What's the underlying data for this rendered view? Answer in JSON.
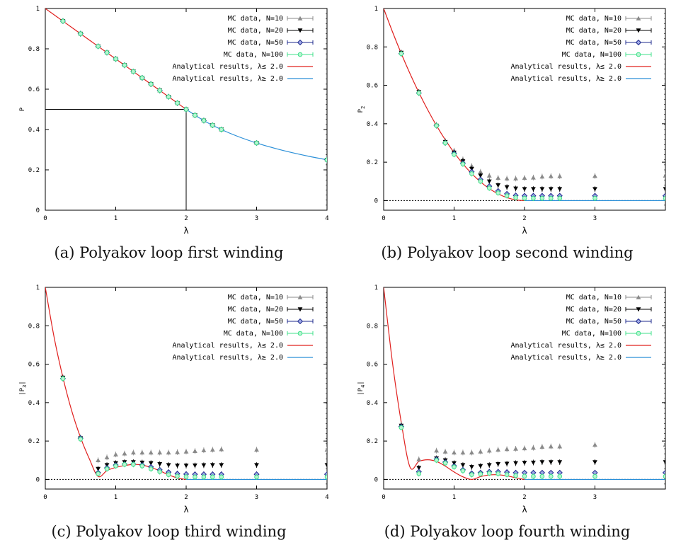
{
  "legend": [
    {
      "label": "MC data, N=10",
      "color": "#8a8a8a",
      "marker": "triangle-up"
    },
    {
      "label": "MC data, N=20",
      "color": "#000000",
      "marker": "triangle-down"
    },
    {
      "label": "MC data, N=50",
      "color": "#1e2a8c",
      "marker": "diamond"
    },
    {
      "label": "MC data, N=100",
      "color": "#3fe08a",
      "marker": "circle"
    },
    {
      "label": "Analytical results, λ≤ 2.0",
      "color": "#e0201e",
      "marker": "line"
    },
    {
      "label": "Analytical results, λ≥ 2.0",
      "color": "#2a8fd8",
      "marker": "line"
    }
  ],
  "chart_data": [
    {
      "type": "scatter",
      "panel_label": "(a)",
      "caption": "Polyakov loop first winding",
      "xlabel": "λ",
      "ylabel": "P",
      "ylabel_sub": "",
      "ylabel_bars": false,
      "xlim": [
        0,
        4
      ],
      "ylim": [
        0,
        1
      ],
      "xticks": [
        0,
        1,
        2,
        3,
        4
      ],
      "yticks": [
        0,
        0.2,
        0.4,
        0.6,
        0.8,
        1
      ],
      "ytick_labels": [
        "0",
        "0.2",
        "0.4",
        "0.6",
        "0.8",
        "1"
      ],
      "zero_line": false,
      "guide_lines": [
        {
          "x": 2,
          "y": 0.5
        }
      ],
      "series": [
        {
          "x": [
            0.25,
            0.5,
            0.75,
            0.875,
            1.0,
            1.125,
            1.25,
            1.375,
            1.5,
            1.625,
            1.75,
            1.875,
            2.0,
            2.125,
            2.25,
            2.375,
            2.5,
            3.0,
            4.0
          ],
          "values": [
            0.9375,
            0.875,
            0.8125,
            0.78125,
            0.75,
            0.71875,
            0.6875,
            0.65625,
            0.625,
            0.59375,
            0.5625,
            0.53125,
            0.5,
            0.4706,
            0.4444,
            0.4211,
            0.4,
            0.3333,
            0.25
          ]
        },
        {
          "x": [
            0.25,
            0.5,
            0.75,
            0.875,
            1.0,
            1.125,
            1.25,
            1.375,
            1.5,
            1.625,
            1.75,
            1.875,
            2.0,
            2.125,
            2.25,
            2.375,
            2.5,
            3.0,
            4.0
          ],
          "values": [
            0.9375,
            0.875,
            0.8125,
            0.78125,
            0.75,
            0.71875,
            0.6875,
            0.65625,
            0.625,
            0.59375,
            0.5625,
            0.53125,
            0.5,
            0.4706,
            0.4444,
            0.4211,
            0.4,
            0.3333,
            0.25
          ]
        },
        {
          "x": [
            0.25,
            0.5,
            0.75,
            0.875,
            1.0,
            1.125,
            1.25,
            1.375,
            1.5,
            1.625,
            1.75,
            1.875,
            2.0,
            2.125,
            2.25,
            2.375,
            2.5,
            3.0,
            4.0
          ],
          "values": [
            0.9375,
            0.875,
            0.8125,
            0.78125,
            0.75,
            0.71875,
            0.6875,
            0.65625,
            0.625,
            0.59375,
            0.5625,
            0.53125,
            0.5,
            0.4706,
            0.4444,
            0.4211,
            0.4,
            0.3333,
            0.25
          ]
        },
        {
          "x": [
            0.25,
            0.5,
            0.75,
            0.875,
            1.0,
            1.125,
            1.25,
            1.375,
            1.5,
            1.625,
            1.75,
            1.875,
            2.0,
            2.125,
            2.25,
            2.375,
            2.5,
            3.0,
            4.0
          ],
          "values": [
            0.9375,
            0.875,
            0.8125,
            0.78125,
            0.75,
            0.71875,
            0.6875,
            0.65625,
            0.625,
            0.59375,
            0.5625,
            0.53125,
            0.5,
            0.4706,
            0.4444,
            0.4211,
            0.4,
            0.3333,
            0.25
          ]
        }
      ],
      "curves": [
        {
          "x": [
            0,
            0.25,
            0.5,
            0.75,
            1.0,
            1.25,
            1.5,
            1.75,
            2.0
          ],
          "values": [
            1.0,
            0.9375,
            0.875,
            0.8125,
            0.75,
            0.6875,
            0.625,
            0.5625,
            0.5
          ]
        },
        {
          "x": [
            2.0,
            2.25,
            2.5,
            2.75,
            3.0,
            3.25,
            3.5,
            3.75,
            4.0
          ],
          "values": [
            0.5,
            0.4444,
            0.4,
            0.3636,
            0.3333,
            0.3077,
            0.2857,
            0.2667,
            0.25
          ]
        }
      ]
    },
    {
      "type": "scatter",
      "panel_label": "(b)",
      "caption": "Polyakov loop second winding",
      "xlabel": "λ",
      "ylabel": "P",
      "ylabel_sub": "2",
      "ylabel_bars": false,
      "xlim": [
        0,
        4
      ],
      "ylim": [
        -0.05,
        1
      ],
      "xticks": [
        0,
        1,
        2,
        3
      ],
      "yticks": [
        0,
        0.2,
        0.4,
        0.6,
        0.8,
        1
      ],
      "ytick_labels": [
        "0",
        "0.2",
        "0.4",
        "0.6",
        "0.8",
        "1"
      ],
      "zero_line": true,
      "guide_lines": [],
      "series": [
        {
          "x": [
            0.25,
            0.5,
            0.75,
            0.875,
            1.0,
            1.125,
            1.25,
            1.375,
            1.5,
            1.625,
            1.75,
            1.875,
            2.0,
            2.125,
            2.25,
            2.375,
            2.5,
            3.0,
            4.0
          ],
          "values": [
            0.77,
            0.565,
            0.395,
            0.31,
            0.26,
            0.215,
            0.18,
            0.15,
            0.13,
            0.118,
            0.115,
            0.115,
            0.118,
            0.12,
            0.125,
            0.127,
            0.127,
            0.128,
            0.13
          ]
        },
        {
          "x": [
            0.25,
            0.5,
            0.75,
            0.875,
            1.0,
            1.125,
            1.25,
            1.375,
            1.5,
            1.625,
            1.75,
            1.875,
            2.0,
            2.125,
            2.25,
            2.375,
            2.5,
            3.0,
            4.0
          ],
          "values": [
            0.77,
            0.565,
            0.39,
            0.305,
            0.25,
            0.205,
            0.165,
            0.13,
            0.1,
            0.08,
            0.07,
            0.063,
            0.06,
            0.06,
            0.06,
            0.06,
            0.06,
            0.06,
            0.06
          ]
        },
        {
          "x": [
            0.25,
            0.5,
            0.75,
            0.875,
            1.0,
            1.125,
            1.25,
            1.375,
            1.5,
            1.625,
            1.75,
            1.875,
            2.0,
            2.125,
            2.25,
            2.375,
            2.5,
            3.0,
            4.0
          ],
          "values": [
            0.765,
            0.56,
            0.39,
            0.3,
            0.245,
            0.195,
            0.15,
            0.11,
            0.075,
            0.05,
            0.035,
            0.027,
            0.025,
            0.025,
            0.025,
            0.025,
            0.025,
            0.025,
            0.025
          ]
        },
        {
          "x": [
            0.25,
            0.5,
            0.75,
            0.875,
            1.0,
            1.125,
            1.25,
            1.375,
            1.5,
            1.625,
            1.75,
            1.875,
            2.0,
            2.125,
            2.25,
            2.375,
            2.5,
            3.0,
            4.0
          ],
          "values": [
            0.765,
            0.56,
            0.39,
            0.3,
            0.24,
            0.19,
            0.14,
            0.1,
            0.065,
            0.04,
            0.025,
            0.015,
            0.012,
            0.012,
            0.012,
            0.012,
            0.012,
            0.012,
            0.012
          ]
        }
      ],
      "curves": [
        {
          "x": [
            0,
            0.125,
            0.25,
            0.375,
            0.5,
            0.625,
            0.75,
            0.875,
            1.0,
            1.125,
            1.25,
            1.375,
            1.5,
            1.625,
            1.75,
            1.875,
            2.0
          ],
          "values": [
            1.0,
            0.8789,
            0.7656,
            0.6602,
            0.5625,
            0.4727,
            0.3906,
            0.3164,
            0.25,
            0.1914,
            0.1406,
            0.0977,
            0.0625,
            0.0352,
            0.0156,
            0.0039,
            0.0
          ]
        },
        {
          "x": [
            2.0,
            4.0
          ],
          "values": [
            0.0,
            0.0
          ]
        }
      ]
    },
    {
      "type": "scatter",
      "panel_label": "(c)",
      "caption": "Polyakov loop third winding",
      "xlabel": "λ",
      "ylabel": "P",
      "ylabel_sub": "3",
      "ylabel_bars": true,
      "xlim": [
        0,
        4
      ],
      "ylim": [
        -0.05,
        1
      ],
      "xticks": [
        0,
        1,
        2,
        3,
        4
      ],
      "yticks": [
        0,
        0.2,
        0.4,
        0.6,
        0.8,
        1
      ],
      "ytick_labels": [
        "0",
        "0.2",
        "0.4",
        "0.6",
        "0.8",
        "1"
      ],
      "zero_line": true,
      "guide_lines": [],
      "series": [
        {
          "x": [
            0.25,
            0.5,
            0.75,
            0.875,
            1.0,
            1.125,
            1.25,
            1.375,
            1.5,
            1.625,
            1.75,
            1.875,
            2.0,
            2.125,
            2.25,
            2.375,
            2.5,
            3.0,
            4.0
          ],
          "values": [
            0.53,
            0.22,
            0.1,
            0.115,
            0.13,
            0.135,
            0.14,
            0.14,
            0.14,
            0.14,
            0.14,
            0.142,
            0.145,
            0.148,
            0.152,
            0.155,
            0.157,
            0.155,
            0.155
          ]
        },
        {
          "x": [
            0.25,
            0.5,
            0.75,
            0.875,
            1.0,
            1.125,
            1.25,
            1.375,
            1.5,
            1.625,
            1.75,
            1.875,
            2.0,
            2.125,
            2.25,
            2.375,
            2.5,
            3.0,
            4.0
          ],
          "values": [
            0.53,
            0.215,
            0.055,
            0.075,
            0.085,
            0.09,
            0.09,
            0.088,
            0.085,
            0.08,
            0.075,
            0.072,
            0.072,
            0.073,
            0.074,
            0.075,
            0.075,
            0.075,
            0.075
          ]
        },
        {
          "x": [
            0.25,
            0.5,
            0.75,
            0.875,
            1.0,
            1.125,
            1.25,
            1.375,
            1.5,
            1.625,
            1.75,
            1.875,
            2.0,
            2.125,
            2.25,
            2.375,
            2.5,
            3.0,
            4.0
          ],
          "values": [
            0.525,
            0.215,
            0.035,
            0.06,
            0.075,
            0.08,
            0.08,
            0.075,
            0.065,
            0.05,
            0.038,
            0.03,
            0.028,
            0.027,
            0.027,
            0.027,
            0.027,
            0.027,
            0.027
          ]
        },
        {
          "x": [
            0.25,
            0.5,
            0.75,
            0.875,
            1.0,
            1.125,
            1.25,
            1.375,
            1.5,
            1.625,
            1.75,
            1.875,
            2.0,
            2.125,
            2.25,
            2.375,
            2.5,
            3.0,
            4.0
          ],
          "values": [
            0.525,
            0.21,
            0.03,
            0.055,
            0.07,
            0.078,
            0.078,
            0.07,
            0.055,
            0.04,
            0.025,
            0.017,
            0.014,
            0.013,
            0.013,
            0.013,
            0.013,
            0.013,
            0.013
          ]
        }
      ],
      "curves": [
        {
          "x": [
            0,
            0.125,
            0.25,
            0.375,
            0.5,
            0.625,
            0.75,
            0.875,
            1.0,
            1.125,
            1.25,
            1.375,
            1.5,
            1.625,
            1.75,
            1.875,
            2.0
          ],
          "values": [
            1.0,
            0.7402,
            0.5313,
            0.3574,
            0.2188,
            0.1074,
            0.0156,
            0.0459,
            0.0625,
            0.0723,
            0.0781,
            0.0752,
            0.0625,
            0.0449,
            0.0244,
            0.0078,
            0.0
          ]
        },
        {
          "x": [
            2.0,
            4.0
          ],
          "values": [
            0.0,
            0.0
          ]
        }
      ]
    },
    {
      "type": "scatter",
      "panel_label": "(d)",
      "caption": "Polyakov loop fourth winding",
      "xlabel": "λ",
      "ylabel": "P",
      "ylabel_sub": "4",
      "ylabel_bars": true,
      "xlim": [
        0,
        4
      ],
      "ylim": [
        -0.05,
        1
      ],
      "xticks": [
        0,
        1,
        2,
        3
      ],
      "yticks": [
        0,
        0.2,
        0.4,
        0.6,
        0.8,
        1
      ],
      "ytick_labels": [
        "0",
        "0.2",
        "0.4",
        "0.6",
        "0.8",
        "1"
      ],
      "zero_line": true,
      "guide_lines": [],
      "series": [
        {
          "x": [
            0.25,
            0.5,
            0.75,
            0.875,
            1.0,
            1.125,
            1.25,
            1.375,
            1.5,
            1.625,
            1.75,
            1.875,
            2.0,
            2.125,
            2.25,
            2.375,
            2.5,
            3.0,
            4.0
          ],
          "values": [
            0.285,
            0.105,
            0.15,
            0.145,
            0.14,
            0.14,
            0.14,
            0.145,
            0.15,
            0.155,
            0.158,
            0.16,
            0.162,
            0.165,
            0.17,
            0.172,
            0.172,
            0.18,
            0.18
          ]
        },
        {
          "x": [
            0.25,
            0.5,
            0.75,
            0.875,
            1.0,
            1.125,
            1.25,
            1.375,
            1.5,
            1.625,
            1.75,
            1.875,
            2.0,
            2.125,
            2.25,
            2.375,
            2.5,
            3.0,
            4.0
          ],
          "values": [
            0.28,
            0.06,
            0.11,
            0.1,
            0.085,
            0.075,
            0.065,
            0.07,
            0.075,
            0.08,
            0.082,
            0.085,
            0.087,
            0.088,
            0.09,
            0.09,
            0.09,
            0.09,
            0.09
          ]
        },
        {
          "x": [
            0.25,
            0.5,
            0.75,
            0.875,
            1.0,
            1.125,
            1.25,
            1.375,
            1.5,
            1.625,
            1.75,
            1.875,
            2.0,
            2.125,
            2.25,
            2.375,
            2.5,
            3.0,
            4.0
          ],
          "values": [
            0.275,
            0.04,
            0.105,
            0.09,
            0.07,
            0.05,
            0.032,
            0.035,
            0.04,
            0.04,
            0.038,
            0.035,
            0.035,
            0.035,
            0.035,
            0.035,
            0.035,
            0.035,
            0.035
          ]
        },
        {
          "x": [
            0.25,
            0.5,
            0.75,
            0.875,
            1.0,
            1.125,
            1.25,
            1.375,
            1.5,
            1.625,
            1.75,
            1.875,
            2.0,
            2.125,
            2.25,
            2.375,
            2.5,
            3.0,
            4.0
          ],
          "values": [
            0.27,
            0.03,
            0.1,
            0.085,
            0.065,
            0.045,
            0.025,
            0.028,
            0.032,
            0.03,
            0.025,
            0.02,
            0.017,
            0.016,
            0.016,
            0.016,
            0.016,
            0.016,
            0.016
          ]
        }
      ],
      "curves": [
        {
          "x": [
            0,
            0.125,
            0.25,
            0.375,
            0.5,
            0.625,
            0.75,
            0.875,
            1.0,
            1.125,
            1.25,
            1.375,
            1.5,
            1.625,
            1.75,
            1.875,
            2.0
          ],
          "values": [
            1.0,
            0.6084,
            0.2969,
            0.0635,
            0.0938,
            0.1025,
            0.0938,
            0.0693,
            0.0391,
            0.0137,
            0.0,
            0.0146,
            0.0234,
            0.0244,
            0.0188,
            0.0088,
            0.0
          ]
        },
        {
          "x": [
            2.0,
            4.0
          ],
          "values": [
            0.0,
            0.0
          ]
        }
      ]
    }
  ]
}
